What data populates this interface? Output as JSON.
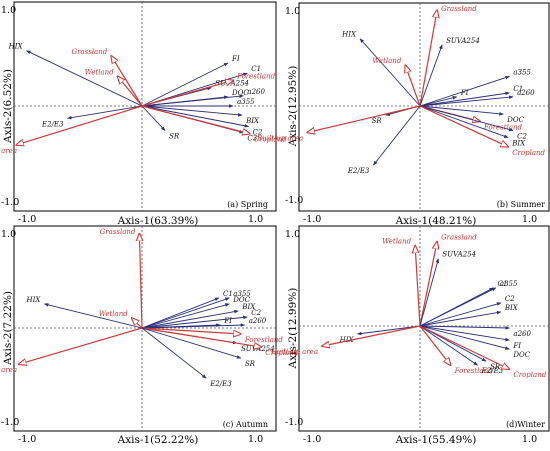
{
  "colors": {
    "species": "#2b2f7a",
    "environment": "#cc3a3a"
  },
  "chart_data": [
    {
      "type": "scatter",
      "panel_label": "(a) Spring",
      "xlabel": "Axis-1(63.39%)",
      "ylabel": "Axis-2(6.52%)",
      "xlim": [
        -1.0,
        1.0
      ],
      "ylim": [
        -1.0,
        1.0
      ],
      "x_tick_labels": [
        "-1.0",
        "1.0"
      ],
      "y_tick_labels": [
        "-1.0",
        "1.0"
      ],
      "vectors": [
        {
          "label": "HIX",
          "group": "species",
          "x": -0.9,
          "y": 0.54
        },
        {
          "label": "E2/E3",
          "group": "species",
          "x": -0.58,
          "y": -0.12
        },
        {
          "label": "FI",
          "group": "species",
          "x": 0.67,
          "y": 0.42
        },
        {
          "label": "C1",
          "group": "species",
          "x": 0.82,
          "y": 0.32
        },
        {
          "label": "SUVA254",
          "group": "species",
          "x": 0.54,
          "y": 0.18
        },
        {
          "label": "DOC",
          "group": "species",
          "x": 0.67,
          "y": 0.09
        },
        {
          "label": "a260",
          "group": "species",
          "x": 0.79,
          "y": 0.1
        },
        {
          "label": "a355",
          "group": "species",
          "x": 0.71,
          "y": 0.0
        },
        {
          "label": "BIX",
          "group": "species",
          "x": 0.78,
          "y": -0.09
        },
        {
          "label": "SR",
          "group": "species",
          "x": 0.18,
          "y": -0.24
        },
        {
          "label": "C2",
          "group": "species",
          "x": 0.83,
          "y": -0.2
        },
        {
          "label": "C3",
          "group": "species",
          "x": 0.79,
          "y": -0.26
        },
        {
          "label": "Grassland",
          "group": "environment",
          "x": -0.24,
          "y": 0.49
        },
        {
          "label": "Wetland",
          "group": "environment",
          "x": -0.19,
          "y": 0.29
        },
        {
          "label": "Forestland",
          "group": "environment",
          "x": 0.71,
          "y": 0.25
        },
        {
          "label": "Cropland",
          "group": "environment",
          "x": 0.84,
          "y": -0.27
        },
        {
          "label": "Built-up area",
          "group": "environment",
          "x": -0.98,
          "y": -0.38
        }
      ]
    },
    {
      "type": "scatter",
      "panel_label": "(b) Summer",
      "xlabel": "Axis-1(48.21%)",
      "ylabel": "Axis-2(12.95%)",
      "xlim": [
        -1.0,
        1.0
      ],
      "ylim": [
        -1.0,
        1.0
      ],
      "x_tick_labels": [
        "-1.0",
        "1.0"
      ],
      "y_tick_labels": [
        "1.0",
        "-1.0"
      ],
      "vectors": [
        {
          "label": "HIX",
          "group": "species",
          "x": -0.49,
          "y": 0.66
        },
        {
          "label": "Grassland",
          "group": "environment",
          "x": 0.14,
          "y": 0.94
        },
        {
          "label": "SUVA254",
          "group": "species",
          "x": 0.18,
          "y": 0.6
        },
        {
          "label": "Wetland",
          "group": "environment",
          "x": -0.12,
          "y": 0.4
        },
        {
          "label": "a355",
          "group": "species",
          "x": 0.73,
          "y": 0.29
        },
        {
          "label": "FI",
          "group": "species",
          "x": 0.3,
          "y": 0.09
        },
        {
          "label": "C1",
          "group": "species",
          "x": 0.73,
          "y": 0.13
        },
        {
          "label": "a260",
          "group": "species",
          "x": 0.76,
          "y": 0.09
        },
        {
          "label": "SR",
          "group": "species",
          "x": -0.28,
          "y": -0.09
        },
        {
          "label": "DOC",
          "group": "species",
          "x": 0.68,
          "y": -0.08
        },
        {
          "label": "Forestland",
          "group": "environment",
          "x": 0.49,
          "y": -0.15
        },
        {
          "label": "C2",
          "group": "species",
          "x": 0.76,
          "y": -0.24
        },
        {
          "label": "BIX",
          "group": "species",
          "x": 0.72,
          "y": -0.31
        },
        {
          "label": "Cropland",
          "group": "environment",
          "x": 0.72,
          "y": -0.4
        },
        {
          "label": "Built-up area",
          "group": "environment",
          "x": -0.92,
          "y": -0.26
        },
        {
          "label": "E2/E3",
          "group": "species",
          "x": -0.38,
          "y": -0.58
        }
      ]
    },
    {
      "type": "scatter",
      "panel_label": "(c) Autumn",
      "xlabel": "Axis-1(52.22%)",
      "ylabel": "Axis-2(7.22%)",
      "xlim": [
        -1.0,
        1.0
      ],
      "ylim": [
        -1.0,
        1.0
      ],
      "x_tick_labels": [
        "-1.0",
        "1.0"
      ],
      "y_tick_labels": [
        "-1.0",
        "1.0"
      ],
      "vectors": [
        {
          "label": "Grassland",
          "group": "environment",
          "x": -0.02,
          "y": 0.94
        },
        {
          "label": "HIX",
          "group": "species",
          "x": -0.76,
          "y": 0.24
        },
        {
          "label": "Wetland",
          "group": "environment",
          "x": -0.08,
          "y": 0.1
        },
        {
          "label": "C1",
          "group": "species",
          "x": 0.6,
          "y": 0.3
        },
        {
          "label": "a355",
          "group": "species",
          "x": 0.68,
          "y": 0.3
        },
        {
          "label": "DOC",
          "group": "species",
          "x": 0.68,
          "y": 0.24
        },
        {
          "label": "BIX",
          "group": "species",
          "x": 0.75,
          "y": 0.17
        },
        {
          "label": "C2",
          "group": "species",
          "x": 0.82,
          "y": 0.11
        },
        {
          "label": "FI",
          "group": "species",
          "x": 0.61,
          "y": 0.03
        },
        {
          "label": "a260",
          "group": "species",
          "x": 0.8,
          "y": 0.03
        },
        {
          "label": "Forestland",
          "group": "environment",
          "x": 0.77,
          "y": -0.06
        },
        {
          "label": "SUVA254",
          "group": "species",
          "x": 0.74,
          "y": -0.15
        },
        {
          "label": "Cropland",
          "group": "environment",
          "x": 0.93,
          "y": -0.19
        },
        {
          "label": "SR",
          "group": "species",
          "x": 0.77,
          "y": -0.3
        },
        {
          "label": "E2/E3",
          "group": "species",
          "x": 0.5,
          "y": -0.5
        },
        {
          "label": "Built-up area",
          "group": "environment",
          "x": -0.96,
          "y": -0.36
        }
      ]
    },
    {
      "type": "scatter",
      "panel_label": "(d)Winter",
      "xlabel": "Axis-1(55.49%)",
      "ylabel": "Axis-2(12.99%)",
      "xlim": [
        -1.0,
        1.0
      ],
      "ylim": [
        -1.0,
        1.0
      ],
      "x_tick_labels": [
        "-1.0",
        "1.0"
      ],
      "y_tick_labels": [
        "1.0",
        "-1.0"
      ],
      "vectors": [
        {
          "label": "Wetland",
          "group": "environment",
          "x": -0.04,
          "y": 0.8
        },
        {
          "label": "Grassland",
          "group": "environment",
          "x": 0.14,
          "y": 0.84
        },
        {
          "label": "SUVA254",
          "group": "species",
          "x": 0.15,
          "y": 0.67
        },
        {
          "label": "C1",
          "group": "species",
          "x": 0.6,
          "y": 0.38
        },
        {
          "label": "a355",
          "group": "species",
          "x": 0.62,
          "y": 0.38
        },
        {
          "label": "C2",
          "group": "species",
          "x": 0.66,
          "y": 0.23
        },
        {
          "label": "BIX",
          "group": "species",
          "x": 0.66,
          "y": 0.14
        },
        {
          "label": "a260",
          "group": "species",
          "x": 0.73,
          "y": -0.02
        },
        {
          "label": "HIX",
          "group": "species",
          "x": -0.51,
          "y": -0.08
        },
        {
          "label": "FI",
          "group": "species",
          "x": 0.73,
          "y": -0.14
        },
        {
          "label": "DOC",
          "group": "species",
          "x": 0.73,
          "y": -0.23
        },
        {
          "label": "Built-up area",
          "group": "environment",
          "x": -0.8,
          "y": -0.2
        },
        {
          "label": "Forestland",
          "group": "environment",
          "x": 0.25,
          "y": -0.39
        },
        {
          "label": "E2/E3",
          "group": "species",
          "x": 0.47,
          "y": -0.39
        },
        {
          "label": "SR",
          "group": "species",
          "x": 0.54,
          "y": -0.35
        },
        {
          "label": "Cropland",
          "group": "environment",
          "x": 0.73,
          "y": -0.43
        }
      ]
    }
  ]
}
